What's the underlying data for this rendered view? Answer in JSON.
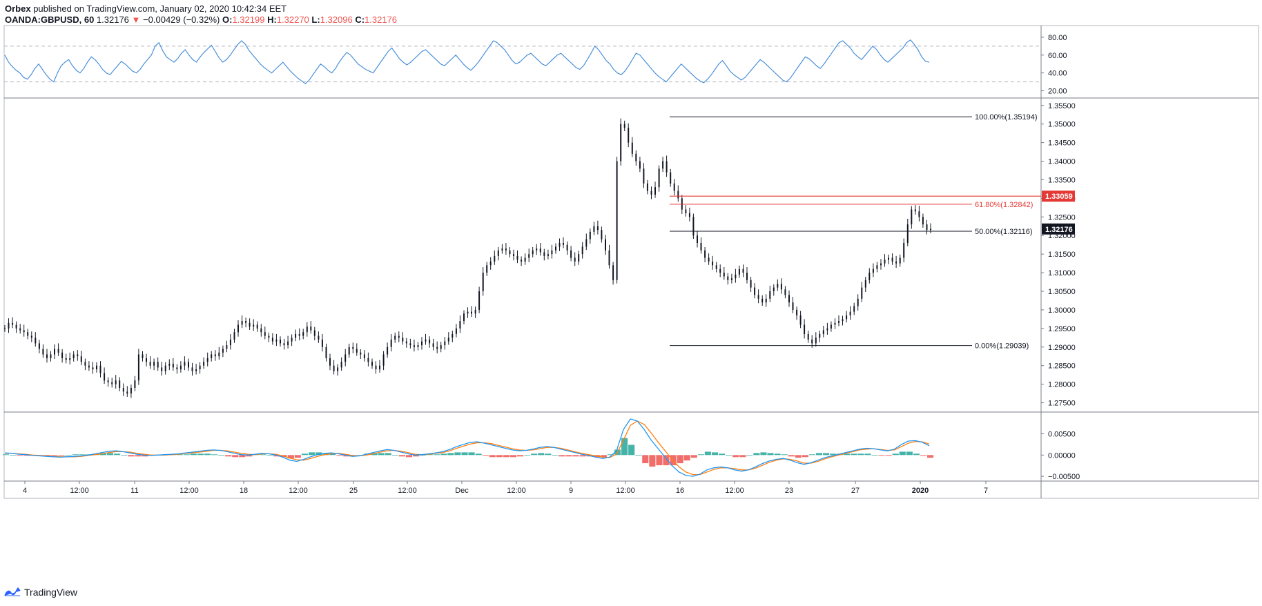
{
  "header": {
    "publisher": "Orbex",
    "published_text": "published on TradingView.com, January 02, 2020 10:42:34 EET",
    "symbol": "OANDA:GBPUSD, 60",
    "last": "1.32176",
    "change_arrow": "▼",
    "change": "−0.00429 (−0.32%)",
    "o_label": "O:",
    "o": "1.32199",
    "h_label": "H:",
    "h": "1.32270",
    "l_label": "L:",
    "l": "1.32096",
    "c_label": "C:",
    "c": "1.32176"
  },
  "footer": {
    "brand": "TradingView",
    "logo_icon": "tradingview-logo-icon"
  },
  "colors": {
    "rsi": "#4a90d9",
    "price": "#131722",
    "red_line": "#e53935",
    "macd_fast": "#2196f3",
    "macd_slow": "#ff7f0e",
    "hist_up": "#26a69a",
    "hist_down": "#ef5350"
  },
  "chart_data": [
    {
      "type": "line",
      "panel": "rsi",
      "y_ticks": [
        "80.00",
        "60.00",
        "40.00",
        "20.00"
      ],
      "ylim": [
        15,
        90
      ],
      "levels": [
        70,
        30
      ],
      "series": [
        {
          "values": [
            60,
            52,
            47,
            43,
            40,
            35,
            33,
            38,
            45,
            50,
            44,
            38,
            33,
            30,
            40,
            48,
            52,
            55,
            48,
            43,
            40,
            45,
            52,
            58,
            55,
            50,
            44,
            40,
            38,
            43,
            48,
            53,
            50,
            46,
            42,
            40,
            44,
            50,
            55,
            60,
            70,
            74,
            65,
            58,
            55,
            52,
            56,
            62,
            66,
            60,
            55,
            52,
            58,
            63,
            67,
            71,
            64,
            57,
            52,
            55,
            60,
            66,
            72,
            76,
            72,
            65,
            60,
            55,
            50,
            46,
            43,
            40,
            44,
            48,
            52,
            47,
            42,
            38,
            34,
            31,
            28,
            32,
            38,
            44,
            50,
            47,
            43,
            40,
            45,
            52,
            58,
            63,
            60,
            55,
            50,
            47,
            44,
            42,
            40,
            46,
            52,
            58,
            64,
            68,
            62,
            56,
            52,
            49,
            52,
            56,
            60,
            64,
            66,
            62,
            58,
            54,
            50,
            48,
            52,
            56,
            60,
            55,
            50,
            46,
            43,
            47,
            52,
            58,
            64,
            70,
            76,
            74,
            70,
            66,
            60,
            54,
            50,
            52,
            56,
            60,
            62,
            58,
            54,
            50,
            48,
            52,
            56,
            60,
            62,
            58,
            54,
            50,
            46,
            44,
            48,
            55,
            62,
            70,
            66,
            60,
            54,
            50,
            44,
            40,
            38,
            42,
            48,
            55,
            62,
            60,
            55,
            50,
            45,
            40,
            36,
            33,
            30,
            35,
            40,
            45,
            50,
            46,
            42,
            38,
            34,
            31,
            29,
            33,
            38,
            44,
            50,
            54,
            48,
            42,
            38,
            35,
            32,
            35,
            40,
            45,
            50,
            55,
            52,
            48,
            44,
            40,
            36,
            32,
            30,
            34,
            40,
            46,
            52,
            58,
            56,
            52,
            48,
            45,
            50,
            56,
            62,
            68,
            74,
            76,
            72,
            68,
            62,
            58,
            55,
            60,
            65,
            70,
            66,
            60,
            55,
            52,
            56,
            60,
            64,
            68,
            74,
            77,
            72,
            66,
            58,
            53,
            52
          ]
        }
      ]
    },
    {
      "type": "line",
      "panel": "price",
      "x_tick_labels": [
        "4",
        "12:00",
        "11",
        "12:00",
        "18",
        "12:00",
        "25",
        "12:00",
        "Dec",
        "12:00",
        "9",
        "12:00",
        "16",
        "12:00",
        "23",
        "27",
        "2020",
        "7"
      ],
      "y_ticks": [
        "1.35500",
        "1.35000",
        "1.34500",
        "1.34000",
        "1.33500",
        "1.33000",
        "1.32500",
        "1.32000",
        "1.31500",
        "1.31000",
        "1.30500",
        "1.30000",
        "1.29500",
        "1.29000",
        "1.28500",
        "1.28000",
        "1.27500"
      ],
      "ylim": [
        1.2725,
        1.357
      ],
      "last_price": 1.32176,
      "last_price_label": "1.32176",
      "red_level": 1.33059,
      "red_level_label": "1.33059",
      "fib_levels": [
        {
          "value": 1.35194,
          "label": "100.00%(1.35194)",
          "color": "#131722"
        },
        {
          "value": 1.32842,
          "label": "61.80%(1.32842)",
          "color": "#e53935"
        },
        {
          "value": 1.32116,
          "label": "50.00%(1.32116)",
          "color": "#131722"
        },
        {
          "value": 1.29039,
          "label": "0.00%(1.29039)",
          "color": "#131722"
        }
      ],
      "series": [
        {
          "values": [
            1.295,
            1.2965,
            1.296,
            1.295,
            1.2945,
            1.294,
            1.293,
            1.2925,
            1.291,
            1.2895,
            1.288,
            1.287,
            1.288,
            1.2895,
            1.2885,
            1.287,
            1.2865,
            1.287,
            1.288,
            1.2875,
            1.286,
            1.285,
            1.2845,
            1.284,
            1.285,
            1.283,
            1.281,
            1.2805,
            1.28,
            1.281,
            1.279,
            1.278,
            1.2775,
            1.279,
            1.281,
            1.288,
            1.287,
            1.286,
            1.285,
            1.286,
            1.2845,
            1.2835,
            1.285,
            1.2855,
            1.2845,
            1.284,
            1.285,
            1.286,
            1.2845,
            1.2835,
            1.284,
            1.285,
            1.286,
            1.287,
            1.288,
            1.2875,
            1.2885,
            1.2895,
            1.2905,
            1.292,
            1.294,
            1.296,
            1.297,
            1.2965,
            1.2955,
            1.296,
            1.295,
            1.294,
            1.293,
            1.2925,
            1.2915,
            1.292,
            1.291,
            1.2905,
            1.2915,
            1.2925,
            1.2935,
            1.293,
            1.294,
            1.2955,
            1.2945,
            1.293,
            1.292,
            1.29,
            1.287,
            1.285,
            1.2835,
            1.2845,
            1.286,
            1.288,
            1.29,
            1.2895,
            1.2885,
            1.288,
            1.287,
            1.286,
            1.285,
            1.284,
            1.285,
            1.288,
            1.29,
            1.292,
            1.293,
            1.2925,
            1.2915,
            1.291,
            1.2905,
            1.29,
            1.2905,
            1.2915,
            1.292,
            1.291,
            1.29,
            1.2895,
            1.2905,
            1.2915,
            1.2925,
            1.2935,
            1.295,
            1.297,
            1.299,
            1.2995,
            1.299,
            1.3,
            1.305,
            1.31,
            1.312,
            1.313,
            1.3145,
            1.316,
            1.3165,
            1.316,
            1.315,
            1.3145,
            1.3135,
            1.313,
            1.314,
            1.315,
            1.316,
            1.3165,
            1.3155,
            1.3145,
            1.315,
            1.316,
            1.317,
            1.318,
            1.3175,
            1.316,
            1.314,
            1.313,
            1.315,
            1.317,
            1.319,
            1.321,
            1.3225,
            1.3215,
            1.319,
            1.316,
            1.312,
            1.308,
            1.34,
            1.35,
            1.349,
            1.345,
            1.342,
            1.34,
            1.338,
            1.334,
            1.332,
            1.331,
            1.333,
            1.338,
            1.34,
            1.337,
            1.334,
            1.332,
            1.33,
            1.327,
            1.326,
            1.325,
            1.32,
            1.318,
            1.316,
            1.314,
            1.313,
            1.312,
            1.311,
            1.31,
            1.309,
            1.308,
            1.3085,
            1.3095,
            1.311,
            1.31,
            1.308,
            1.306,
            1.304,
            1.303,
            1.302,
            1.303,
            1.305,
            1.306,
            1.307,
            1.3055,
            1.304,
            1.302,
            1.3,
            1.2985,
            1.296,
            1.2935,
            1.292,
            1.291,
            1.2925,
            1.2935,
            1.2945,
            1.295,
            1.296,
            1.2965,
            1.297,
            1.2975,
            1.2985,
            1.2995,
            1.301,
            1.303,
            1.306,
            1.308,
            1.31,
            1.311,
            1.312,
            1.3125,
            1.3135,
            1.314,
            1.313,
            1.3125,
            1.314,
            1.318,
            1.323,
            1.327,
            1.3265,
            1.325,
            1.323,
            1.3215,
            1.3218
          ]
        }
      ]
    },
    {
      "type": "line",
      "panel": "macd",
      "y_ticks": [
        "0.00500",
        "0.00000",
        "−0.00500"
      ],
      "ylim": [
        -0.0058,
        0.0098
      ],
      "series": [
        {
          "values": [
            0.0005,
            0.0004,
            0.0002,
            0.0001,
            -0.0001,
            -0.0002,
            -0.0003,
            -0.0004,
            -0.0005,
            -0.0004,
            -0.0003,
            -0.0002,
            0.0,
            0.0003,
            0.0006,
            0.0009,
            0.001,
            0.0008,
            0.0005,
            0.0002,
            0.0,
            -0.0001,
            0.0,
            0.0001,
            0.0002,
            0.0003,
            0.0005,
            0.0007,
            0.0009,
            0.0011,
            0.0012,
            0.0011,
            0.0008,
            0.0004,
            0.0001,
            0.0,
            0.0002,
            0.0004,
            0.0003,
            0.0,
            -0.0005,
            -0.0012,
            -0.0015,
            -0.001,
            -0.0004,
            0.0001,
            0.0004,
            0.0005,
            0.0003,
            0.0,
            -0.0003,
            -0.0002,
            0.0002,
            0.0006,
            0.001,
            0.0013,
            0.0011,
            0.0007,
            0.0003,
            0.0,
            0.0001,
            0.0003,
            0.0005,
            0.0008,
            0.0013,
            0.002,
            0.0025,
            0.003,
            0.0031,
            0.0028,
            0.0024,
            0.002,
            0.0016,
            0.0012,
            0.001,
            0.0011,
            0.0014,
            0.0018,
            0.002,
            0.0018,
            0.0014,
            0.001,
            0.0006,
            0.0002,
            -0.0001,
            -0.0005,
            -0.0008,
            -0.0005,
            0.001,
            0.006,
            0.0085,
            0.008,
            0.006,
            0.0035,
            0.0015,
            -0.0005,
            -0.0025,
            -0.004,
            -0.0048,
            -0.005,
            -0.0045,
            -0.0035,
            -0.003,
            -0.0028,
            -0.003,
            -0.0035,
            -0.0038,
            -0.0035,
            -0.0028,
            -0.002,
            -0.0014,
            -0.001,
            -0.0008,
            -0.0012,
            -0.0018,
            -0.0022,
            -0.0018,
            -0.0012,
            -0.0006,
            -0.0002,
            0.0002,
            0.0006,
            0.001,
            0.0014,
            0.0016,
            0.0015,
            0.0012,
            0.001,
            0.0014,
            0.0025,
            0.0033,
            0.0034,
            0.003,
            0.0022
          ]
        },
        {
          "values": [
            0.0004,
            0.0004,
            0.0003,
            0.0002,
            0.0,
            -0.0001,
            -0.0002,
            -0.0003,
            -0.0004,
            -0.0004,
            -0.0004,
            -0.0003,
            -0.0001,
            0.0001,
            0.0003,
            0.0006,
            0.0008,
            0.0008,
            0.0007,
            0.0004,
            0.0002,
            0.0,
            0.0,
            0.0,
            0.0001,
            0.0002,
            0.0004,
            0.0005,
            0.0007,
            0.0009,
            0.0011,
            0.0011,
            0.001,
            0.0007,
            0.0004,
            0.0002,
            0.0001,
            0.0003,
            0.0003,
            0.0002,
            -0.0002,
            -0.0007,
            -0.0011,
            -0.0012,
            -0.0008,
            -0.0003,
            0.0001,
            0.0003,
            0.0004,
            0.0002,
            -0.0001,
            -0.0002,
            0.0,
            0.0003,
            0.0007,
            0.001,
            0.0011,
            0.0009,
            0.0006,
            0.0002,
            0.0001,
            0.0002,
            0.0004,
            0.0006,
            0.001,
            0.0016,
            0.0021,
            0.0026,
            0.0029,
            0.0029,
            0.0027,
            0.0023,
            0.0019,
            0.0015,
            0.0012,
            0.0011,
            0.0012,
            0.0015,
            0.0018,
            0.0018,
            0.0016,
            0.0012,
            0.0008,
            0.0004,
            0.0001,
            -0.0002,
            -0.0005,
            -0.0006,
            0.0002,
            0.0035,
            0.007,
            0.008,
            0.0072,
            0.0052,
            0.003,
            0.001,
            -0.001,
            -0.0028,
            -0.004,
            -0.0046,
            -0.0046,
            -0.004,
            -0.0034,
            -0.003,
            -0.003,
            -0.0032,
            -0.0035,
            -0.0035,
            -0.0031,
            -0.0024,
            -0.0017,
            -0.0012,
            -0.0009,
            -0.001,
            -0.0014,
            -0.0019,
            -0.0019,
            -0.0015,
            -0.0009,
            -0.0004,
            0.0,
            0.0004,
            0.0008,
            0.0012,
            0.0014,
            0.0015,
            0.0013,
            0.0011,
            0.0012,
            0.002,
            0.0028,
            0.0032,
            0.0031,
            0.0026
          ]
        }
      ]
    }
  ]
}
